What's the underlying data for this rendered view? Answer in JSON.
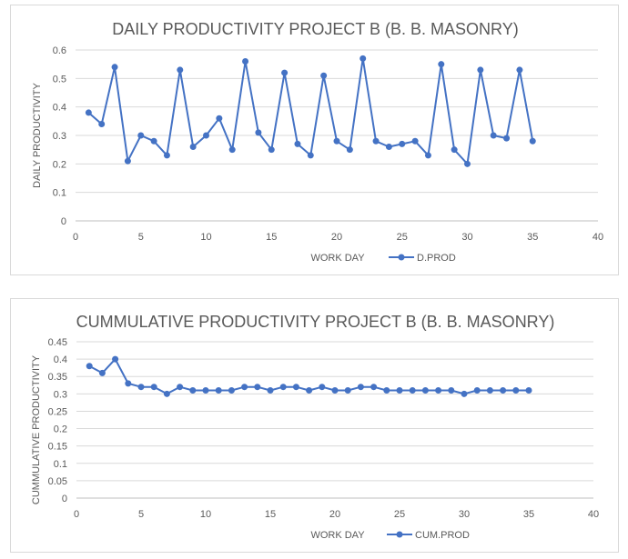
{
  "chart_data": [
    {
      "type": "line",
      "title": "DAILY PRODUCTIVITY PROJECT B (B. B. MASONRY)",
      "xlabel": "WORK DAY",
      "ylabel": "DAILY PRODUCTIVITY",
      "xlim": [
        0,
        40
      ],
      "ylim": [
        0,
        0.6
      ],
      "x_ticks": [
        "0",
        "5",
        "10",
        "15",
        "20",
        "25",
        "30",
        "35",
        "40"
      ],
      "y_ticks": [
        "0",
        "0.1",
        "0.2",
        "0.3",
        "0.4",
        "0.5",
        "0.6"
      ],
      "grid": "horizontal",
      "legend_position": "bottom",
      "series": [
        {
          "name": "D.PROD",
          "color": "#4472c4",
          "x": [
            1,
            2,
            3,
            4,
            5,
            6,
            7,
            8,
            9,
            10,
            11,
            12,
            13,
            14,
            15,
            16,
            17,
            18,
            19,
            20,
            21,
            22,
            23,
            24,
            25,
            26,
            27,
            28,
            29,
            30,
            31,
            32,
            33,
            34,
            35
          ],
          "y": [
            0.38,
            0.34,
            0.54,
            0.21,
            0.3,
            0.28,
            0.23,
            0.53,
            0.26,
            0.3,
            0.36,
            0.25,
            0.56,
            0.31,
            0.25,
            0.52,
            0.27,
            0.23,
            0.51,
            0.28,
            0.25,
            0.57,
            0.28,
            0.26,
            0.27,
            0.28,
            0.23,
            0.55,
            0.25,
            0.2,
            0.53,
            0.3,
            0.29,
            0.53,
            0.28
          ]
        }
      ]
    },
    {
      "type": "line",
      "title": "CUMMULATIVE PRODUCTIVITY PROJECT B (B. B. MASONRY)",
      "xlabel": "WORK DAY",
      "ylabel": "CUMMULATIVE PRODUCTIVITY",
      "xlim": [
        0,
        40
      ],
      "ylim": [
        0,
        0.45
      ],
      "x_ticks": [
        "0",
        "5",
        "10",
        "15",
        "20",
        "25",
        "30",
        "35",
        "40"
      ],
      "y_ticks": [
        "0",
        "0.05",
        "0.1",
        "0.15",
        "0.2",
        "0.25",
        "0.3",
        "0.35",
        "0.4",
        "0.45"
      ],
      "grid": "horizontal",
      "legend_position": "bottom",
      "series": [
        {
          "name": "CUM.PROD",
          "color": "#4472c4",
          "x": [
            1,
            2,
            3,
            4,
            5,
            6,
            7,
            8,
            9,
            10,
            11,
            12,
            13,
            14,
            15,
            16,
            17,
            18,
            19,
            20,
            21,
            22,
            23,
            24,
            25,
            26,
            27,
            28,
            29,
            30,
            31,
            32,
            33,
            34,
            35
          ],
          "y": [
            0.38,
            0.36,
            0.4,
            0.33,
            0.32,
            0.32,
            0.3,
            0.32,
            0.31,
            0.31,
            0.31,
            0.31,
            0.32,
            0.32,
            0.31,
            0.32,
            0.32,
            0.31,
            0.32,
            0.31,
            0.31,
            0.32,
            0.32,
            0.31,
            0.31,
            0.31,
            0.31,
            0.31,
            0.31,
            0.3,
            0.31,
            0.31,
            0.31,
            0.31,
            0.31
          ]
        }
      ]
    }
  ]
}
